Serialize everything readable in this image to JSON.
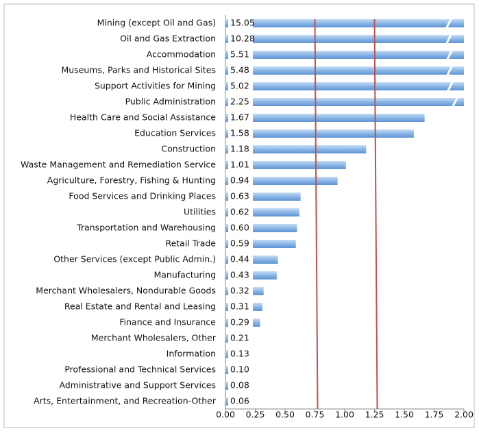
{
  "chart_data": {
    "type": "bar",
    "orientation": "horizontal",
    "categories": [
      "Mining (except Oil and Gas)",
      "Oil and Gas Extraction",
      "Accommodation",
      "Museums, Parks and Historical Sites",
      "Support Activities for Mining",
      "Public Administration",
      "Health Care and Social Assistance",
      "Education Services",
      "Construction",
      "Waste Management and Remediation Service",
      "Agriculture, Forestry, Fishing & Hunting",
      "Food Services and Drinking Places",
      "Utilities",
      "Transportation and Warehousing",
      "Retail Trade",
      "Other Services (except Public Admin.)",
      "Manufacturing",
      "Merchant Wholesalers, Nondurable Goods",
      "Real Estate and Rental and Leasing",
      "Finance and Insurance",
      "Merchant Wholesalers, Other",
      "Information",
      "Professional and Technical Services",
      "Administrative and Support Services",
      "Arts, Entertainment, and Recreation-Other"
    ],
    "values": [
      15.05,
      10.28,
      5.51,
      5.48,
      5.02,
      2.25,
      1.67,
      1.58,
      1.18,
      1.01,
      0.94,
      0.63,
      0.62,
      0.6,
      0.59,
      0.44,
      0.43,
      0.32,
      0.31,
      0.29,
      0.21,
      0.13,
      0.1,
      0.08,
      0.06
    ],
    "value_labels": [
      "15.05",
      "10.28",
      "5.51",
      "5.48",
      "5.02",
      "2.25",
      "1.67",
      "1.58",
      "1.18",
      "1.01",
      "0.94",
      "0.63",
      "0.62",
      "0.60",
      "0.59",
      "0.44",
      "0.43",
      "0.32",
      "0.31",
      "0.29",
      "0.21",
      "0.13",
      "0.10",
      "0.08",
      "0.06"
    ],
    "color": "#6fa4dc",
    "xlim": [
      0,
      2
    ],
    "xticks": [
      {
        "value": 0,
        "label": "0.00"
      },
      {
        "value": 0.25,
        "label": "0.25"
      },
      {
        "value": 0.5,
        "label": "0.50"
      },
      {
        "value": 0.75,
        "label": "0.75"
      },
      {
        "value": 1,
        "label": "1.00"
      },
      {
        "value": 1.25,
        "label": "1.25"
      },
      {
        "value": 1.5,
        "label": "1.50"
      },
      {
        "value": 1.75,
        "label": "1.75"
      },
      {
        "value": 2,
        "label": "2.00"
      }
    ],
    "reference_lines": [
      0.75,
      1.25
    ],
    "reference_color": "#c0504d"
  }
}
